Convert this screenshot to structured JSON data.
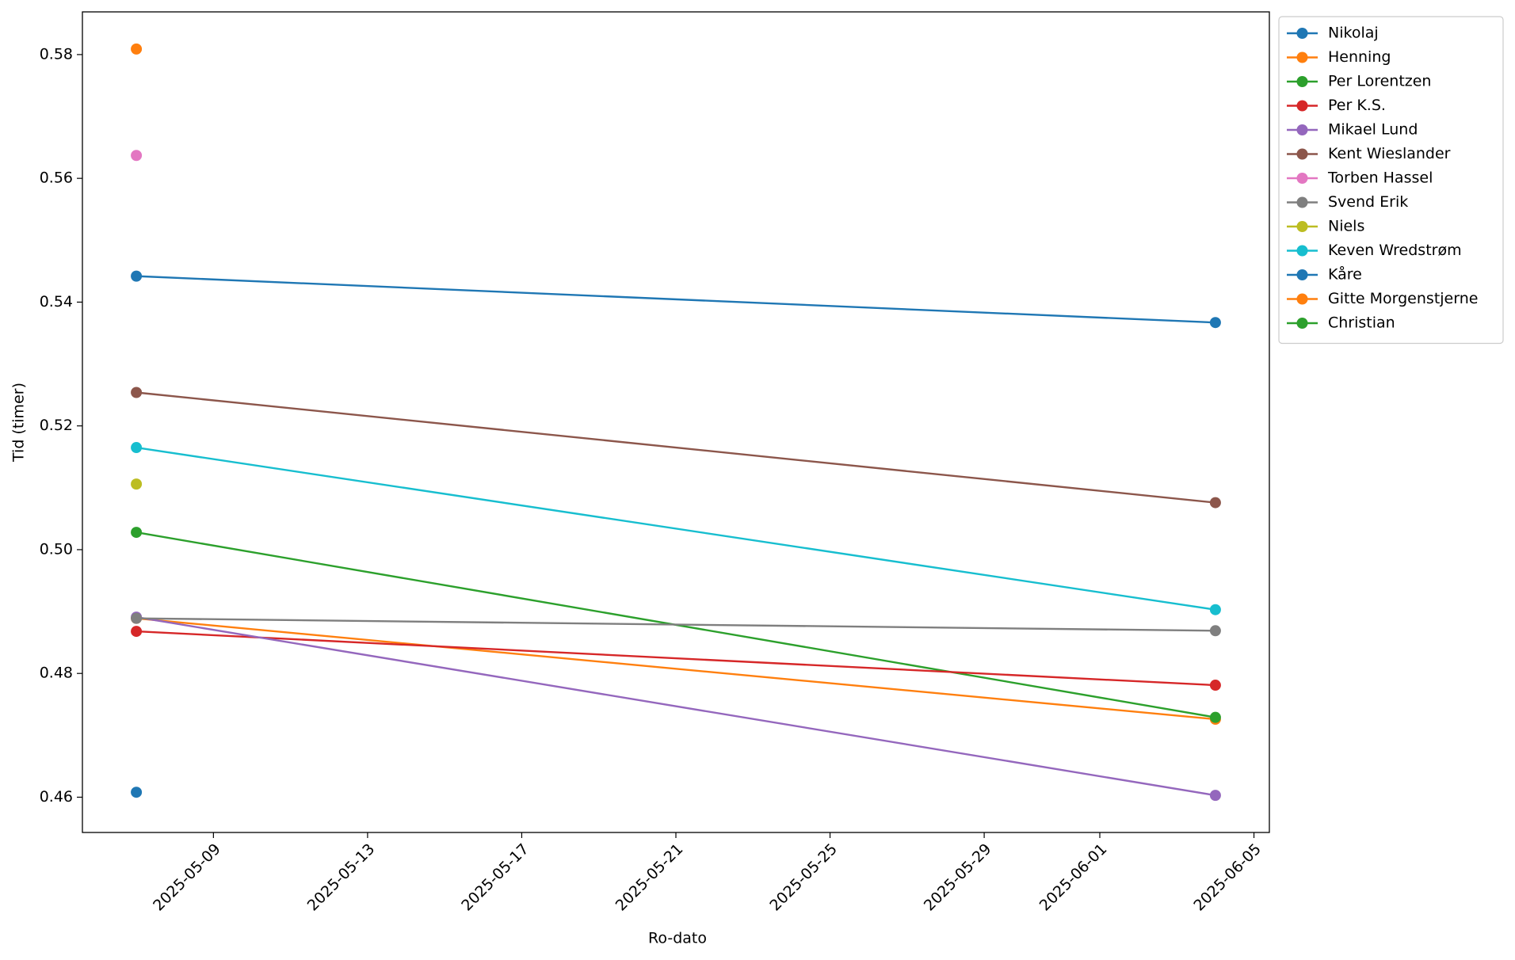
{
  "chart_data": {
    "type": "line",
    "x_label": "Ro-dato",
    "y_label": "Tid (timer)",
    "x": [
      "2025-05-07",
      "2025-06-04"
    ],
    "xlim": [
      "2025-05-05T14:24:00Z",
      "2025-06-05T09:36:00Z"
    ],
    "xticks": [
      "2025-05-09",
      "2025-05-13",
      "2025-05-17",
      "2025-05-21",
      "2025-05-25",
      "2025-05-29",
      "2025-06-01",
      "2025-06-05"
    ],
    "ylim": [
      0.4543,
      0.5869
    ],
    "yticks": [
      {
        "value": 0.46,
        "label": "0.46"
      },
      {
        "value": 0.48,
        "label": "0.48"
      },
      {
        "value": 0.5,
        "label": "0.50"
      },
      {
        "value": 0.52,
        "label": "0.52"
      },
      {
        "value": 0.54,
        "label": "0.54"
      },
      {
        "value": 0.56,
        "label": "0.56"
      },
      {
        "value": 0.58,
        "label": "0.58"
      }
    ],
    "legend": "outside upper right",
    "series": [
      {
        "name": "Nikolaj",
        "color": "#1f77b4",
        "values": [
          0.5442,
          0.5367
        ]
      },
      {
        "name": "Henning",
        "color": "#ff7f0e",
        "values": [
          0.4889,
          0.4726
        ]
      },
      {
        "name": "Per Lorentzen",
        "color": "#2ca02c",
        "values": [
          0.5028,
          0.4729
        ]
      },
      {
        "name": "Per K.S.",
        "color": "#d62728",
        "values": [
          0.4868,
          0.4781
        ]
      },
      {
        "name": "Mikael Lund",
        "color": "#9467bd",
        "values": [
          0.4891,
          0.4603
        ]
      },
      {
        "name": "Kent Wieslander",
        "color": "#8c564b",
        "values": [
          0.5254,
          0.5076
        ]
      },
      {
        "name": "Torben Hassel",
        "color": "#e377c2",
        "values": [
          0.5637,
          null
        ]
      },
      {
        "name": "Svend Erik",
        "color": "#7f7f7f",
        "values": [
          0.4889,
          0.4869
        ]
      },
      {
        "name": "Niels",
        "color": "#bcbd22",
        "values": [
          0.5106,
          null
        ]
      },
      {
        "name": "Keven Wredstrøm",
        "color": "#17becf",
        "values": [
          0.5165,
          0.4903
        ]
      },
      {
        "name": "Kåre",
        "color": "#1f77b4",
        "values": [
          0.4608,
          null
        ]
      },
      {
        "name": "Gitte Morgenstjerne",
        "color": "#ff7f0e",
        "values": [
          0.5809,
          null
        ]
      },
      {
        "name": "Christian",
        "color": "#2ca02c",
        "values": [
          null,
          null
        ]
      }
    ]
  }
}
